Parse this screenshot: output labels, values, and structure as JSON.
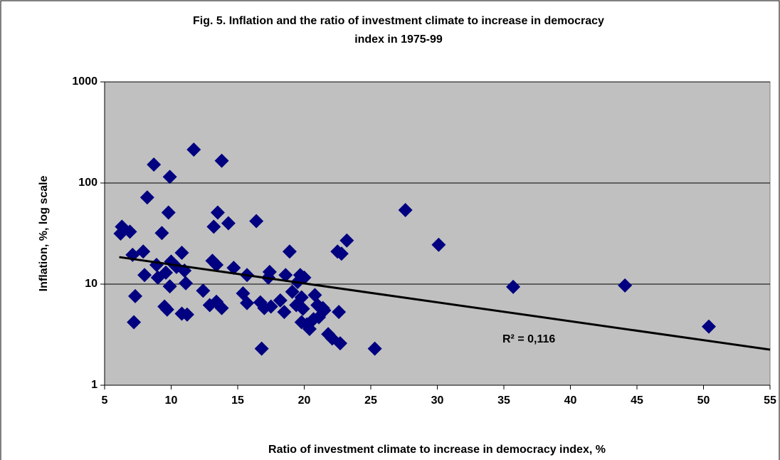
{
  "chart_data": {
    "type": "scatter",
    "title": [
      "Fig. 5. Inflation and the ratio of investment climate to increase in democracy",
      "index in 1975-99"
    ],
    "xlabel": "Ratio of investment climate  to increase in democracy index, %",
    "ylabel": "Inflation, %, log scale",
    "annotation": "R² = 0,116",
    "xlim": [
      5,
      55
    ],
    "xticks": [
      5,
      10,
      15,
      20,
      25,
      30,
      35,
      40,
      45,
      50,
      55
    ],
    "ylim": [
      1,
      1000
    ],
    "yticks": [
      1,
      10,
      100,
      1000
    ],
    "yscale": "log",
    "grid": true,
    "background": "#c0c0c0",
    "series": [
      {
        "color": "#000080",
        "x": [
          6.2,
          6.3,
          6.9,
          7.1,
          7.3,
          7.2,
          7.9,
          8.0,
          8.2,
          8.7,
          8.9,
          9.0,
          9.3,
          9.5,
          9.7,
          9.8,
          9.9,
          9.9,
          10.0,
          9.6,
          10.4,
          10.8,
          10.8,
          11.0,
          11.1,
          11.2,
          11.7,
          12.4,
          12.9,
          13.1,
          13.2,
          13.4,
          13.5,
          13.4,
          13.8,
          13.8,
          14.3,
          14.7,
          15.4,
          15.7,
          15.7,
          16.4,
          16.7,
          16.8,
          17.0,
          17.3,
          17.4,
          17.5,
          18.2,
          18.5,
          18.6,
          18.9,
          19.1,
          19.4,
          19.5,
          19.7,
          19.8,
          19.8,
          20.0,
          19.9,
          20.2,
          20.4,
          20.7,
          20.8,
          21.0,
          21.1,
          21.4,
          21.5,
          21.8,
          22.1,
          22.5,
          22.7,
          22.8,
          22.6,
          23.2,
          25.3,
          27.6,
          30.1,
          35.7,
          44.1,
          50.4
        ],
        "values": [
          31.6,
          37,
          33,
          19.5,
          7.6,
          4.2,
          21,
          12.3,
          72,
          152,
          15.5,
          11.6,
          32,
          6.0,
          5.6,
          51,
          115,
          9.5,
          16.7,
          13,
          14.8,
          20.4,
          5.1,
          13.6,
          10.2,
          5.0,
          214,
          8.6,
          6.2,
          17,
          37,
          15.5,
          51,
          6.7,
          5.8,
          166,
          40,
          14.5,
          8.1,
          12.3,
          6.5,
          42,
          6.6,
          2.3,
          5.8,
          11.6,
          13.2,
          6.0,
          6.9,
          5.3,
          12.3,
          21,
          8.4,
          6.2,
          10.5,
          12.3,
          4.2,
          7.4,
          11.6,
          5.7,
          4.0,
          3.6,
          4.5,
          7.8,
          6.2,
          4.7,
          5.8,
          5.5,
          3.2,
          2.9,
          21,
          2.6,
          20,
          5.3,
          27,
          2.3,
          54,
          24.5,
          9.4,
          9.7,
          3.8
        ]
      }
    ],
    "trendline": {
      "color": "#000000",
      "x": [
        6.1,
        55
      ],
      "values": [
        18.5,
        2.25
      ]
    }
  }
}
